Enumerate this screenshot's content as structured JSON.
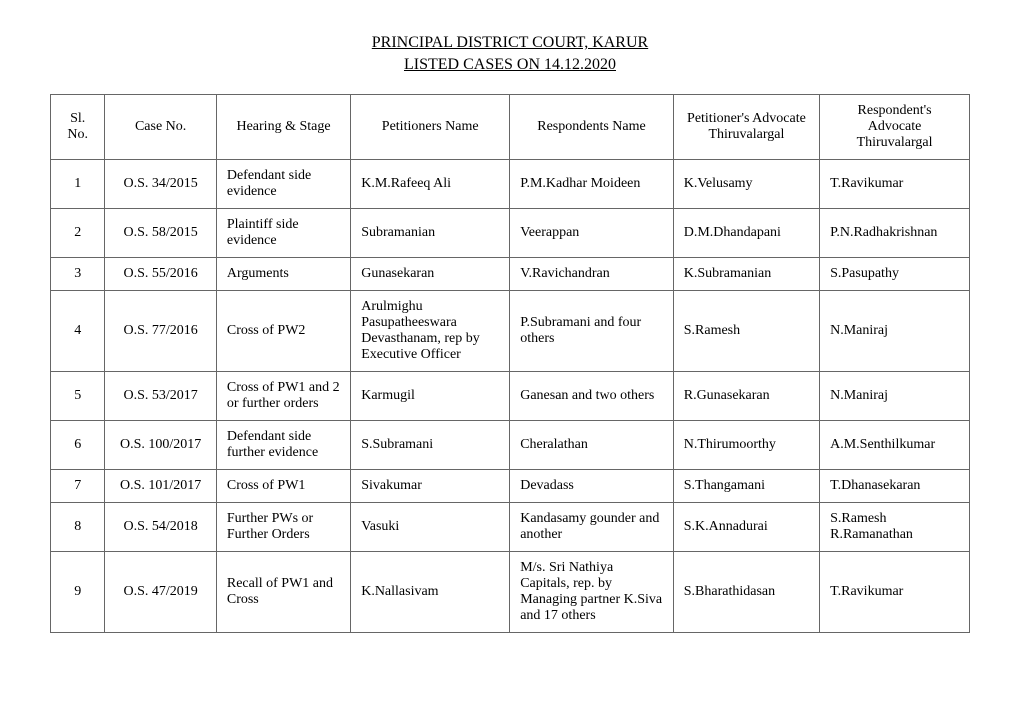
{
  "header": {
    "court": "PRINCIPAL DISTRICT COURT, KARUR",
    "subtitle": "LISTED CASES ON 14.12.2020"
  },
  "columns": {
    "sno": "Sl. No.",
    "caseno": "Case No.",
    "hearing": "Hearing & Stage",
    "petitioner": "Petitioners Name",
    "respondent": "Respondents Name",
    "padv": "Petitioner's Advocate Thiruvalargal",
    "radv": "Respondent's Advocate Thiruvalargal"
  },
  "rows": [
    {
      "sno": "1",
      "caseno": "O.S. 34/2015",
      "hearing": "Defendant side evidence",
      "petitioner": "K.M.Rafeeq Ali",
      "respondent": "P.M.Kadhar Moideen",
      "padv": "K.Velusamy",
      "radv": "T.Ravikumar"
    },
    {
      "sno": "2",
      "caseno": "O.S. 58/2015",
      "hearing": "Plaintiff side evidence",
      "petitioner": "Subramanian",
      "respondent": "Veerappan",
      "padv": "D.M.Dhandapani",
      "radv": "P.N.Radhakrishnan"
    },
    {
      "sno": "3",
      "caseno": "O.S. 55/2016",
      "hearing": "Arguments",
      "petitioner": "Gunasekaran",
      "respondent": "V.Ravichandran",
      "padv": "K.Subramanian",
      "radv": "S.Pasupathy"
    },
    {
      "sno": "4",
      "caseno": "O.S. 77/2016",
      "hearing": "Cross of PW2",
      "petitioner": "Arulmighu Pasupatheeswara Devasthanam, rep by Executive Officer",
      "respondent": "P.Subramani and four others",
      "padv": "S.Ramesh",
      "radv": "N.Maniraj"
    },
    {
      "sno": "5",
      "caseno": "O.S. 53/2017",
      "hearing": "Cross of PW1 and 2 or further orders",
      "petitioner": "Karmugil",
      "respondent": "Ganesan and two others",
      "padv": "R.Gunasekaran",
      "radv": "N.Maniraj"
    },
    {
      "sno": "6",
      "caseno": "O.S. 100/2017",
      "hearing": "Defendant side further evidence",
      "petitioner": "S.Subramani",
      "respondent": "Cheralathan",
      "padv": "N.Thirumoorthy",
      "radv": "A.M.Senthilkumar"
    },
    {
      "sno": "7",
      "caseno": "O.S. 101/2017",
      "hearing": "Cross of PW1",
      "petitioner": "Sivakumar",
      "respondent": "Devadass",
      "padv": "S.Thangamani",
      "radv": "T.Dhanasekaran"
    },
    {
      "sno": "8",
      "caseno": "O.S. 54/2018",
      "hearing": "Further PWs or Further Orders",
      "petitioner": "Vasuki",
      "respondent": "Kandasamy gounder and another",
      "padv": "S.K.Annadurai",
      "radv": "S.Ramesh R.Ramanathan"
    },
    {
      "sno": "9",
      "caseno": "O.S. 47/2019",
      "hearing": "Recall of PW1 and Cross",
      "petitioner": "K.Nallasivam",
      "respondent": "M/s. Sri Nathiya Capitals, rep. by Managing partner K.Siva and 17 others",
      "padv": "S.Bharathidasan",
      "radv": "T.Ravikumar"
    }
  ]
}
